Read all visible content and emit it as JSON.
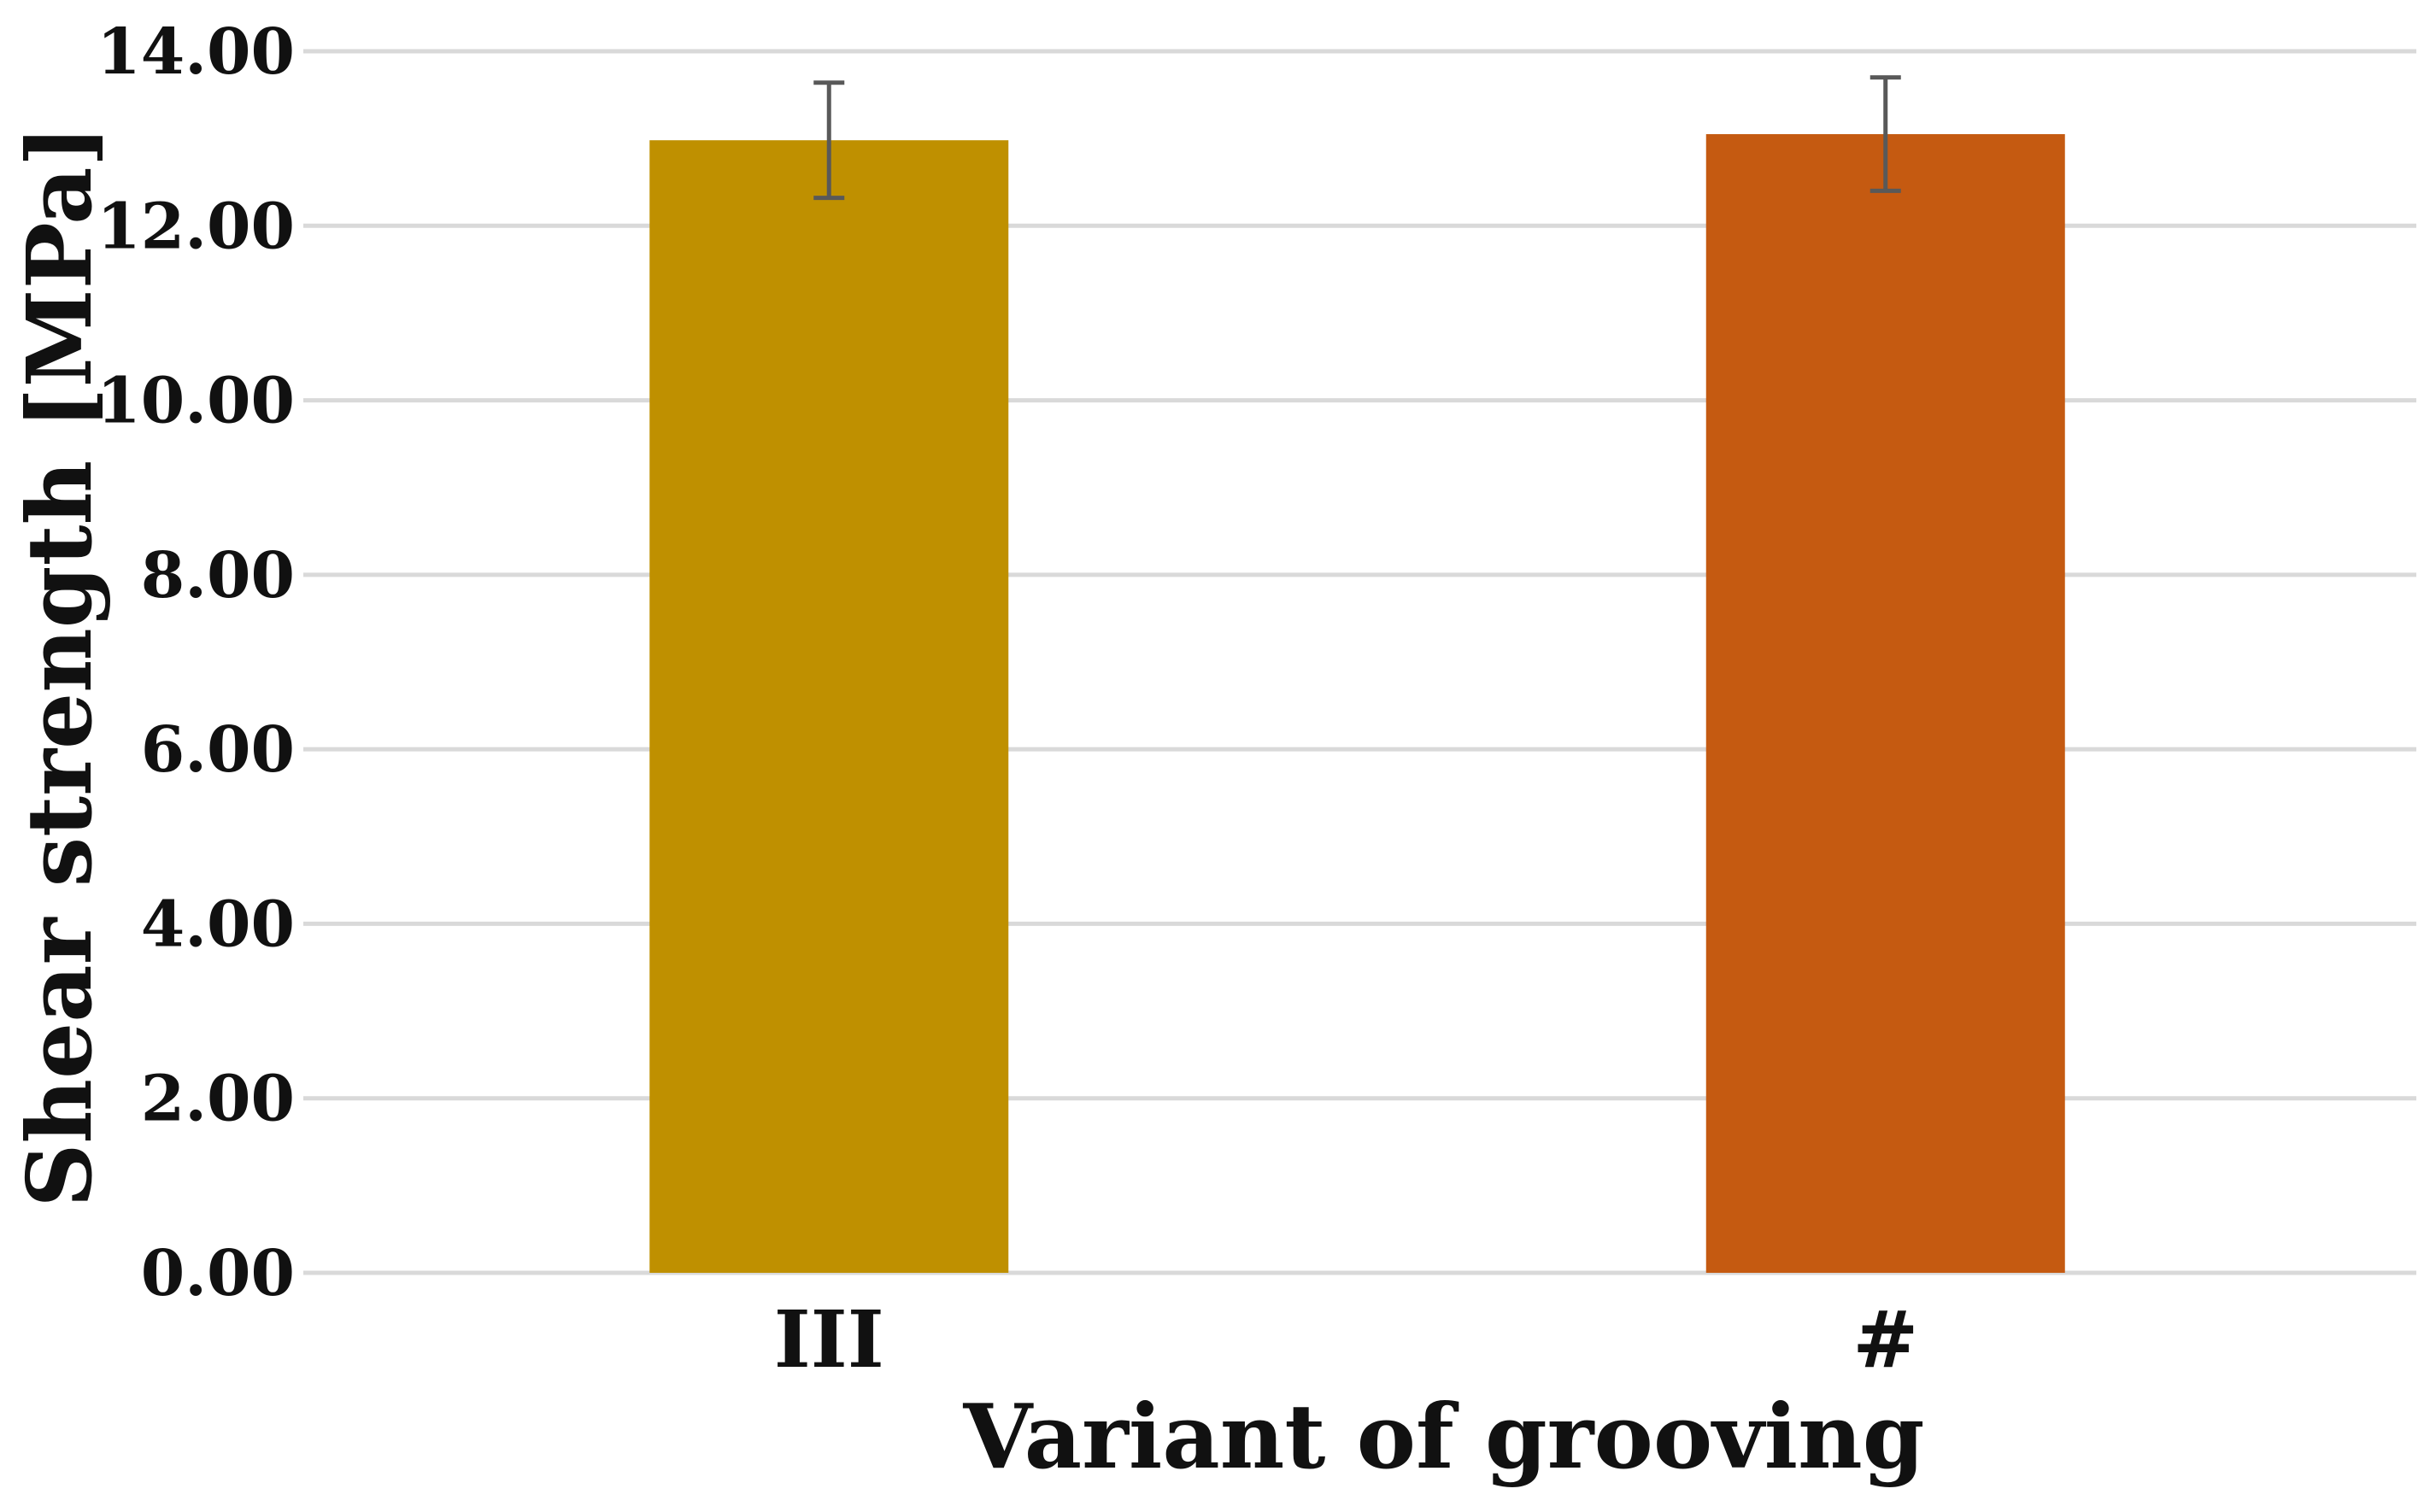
{
  "chart_data": {
    "type": "bar",
    "categories": [
      "III",
      "#"
    ],
    "values": [
      12.98,
      13.05
    ],
    "error": [
      0.66,
      0.65
    ],
    "colors": [
      "#BF9000",
      "#C55A11"
    ],
    "xlabel": "Variant of grooving",
    "ylabel": "Shear strength [MPa]",
    "ylim": [
      0,
      14
    ],
    "yticks": [
      "0.00",
      "2.00",
      "4.00",
      "6.00",
      "8.00",
      "10.00",
      "12.00",
      "14.00"
    ],
    "grid": true,
    "legend": "none"
  }
}
